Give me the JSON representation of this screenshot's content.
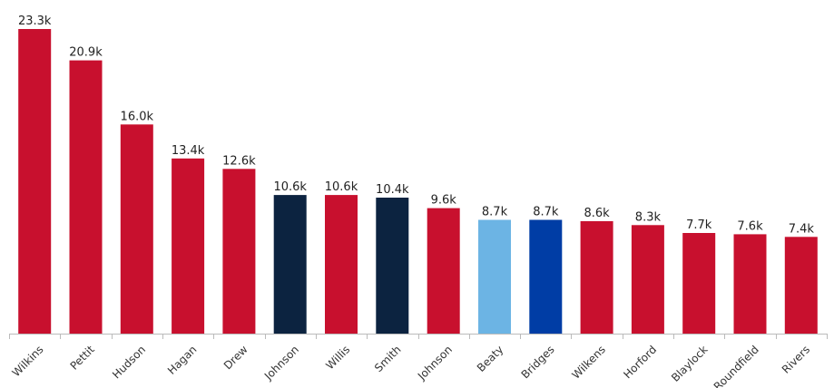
{
  "chart_data": {
    "type": "bar",
    "title": "",
    "xlabel": "",
    "ylabel": "",
    "ylim": [
      0,
      23.3
    ],
    "grid": false,
    "legend": "none",
    "categories": [
      "Wilkins",
      "Pettit",
      "Hudson",
      "Hagan",
      "Drew",
      "Johnson",
      "Willis",
      "Smith",
      "Johnson",
      "Beaty",
      "Bridges",
      "Wilkens",
      "Horford",
      "Blaylock",
      "Roundfield",
      "Rivers"
    ],
    "values": [
      23.3,
      20.9,
      16.0,
      13.4,
      12.6,
      10.6,
      10.6,
      10.4,
      9.6,
      8.7,
      8.7,
      8.6,
      8.3,
      7.7,
      7.6,
      7.4
    ],
    "value_labels": [
      "23.3k",
      "20.9k",
      "16.0k",
      "13.4k",
      "12.6k",
      "10.6k",
      "10.6k",
      "10.4k",
      "9.6k",
      "8.7k",
      "8.7k",
      "8.6k",
      "8.3k",
      "7.7k",
      "7.6k",
      "7.4k"
    ],
    "bar_colors": [
      "#c8102e",
      "#c8102e",
      "#c8102e",
      "#c8102e",
      "#c8102e",
      "#0c2340",
      "#c8102e",
      "#0c2340",
      "#c8102e",
      "#6cb4e4",
      "#003da5",
      "#c8102e",
      "#c8102e",
      "#c8102e",
      "#c8102e",
      "#c8102e"
    ]
  }
}
